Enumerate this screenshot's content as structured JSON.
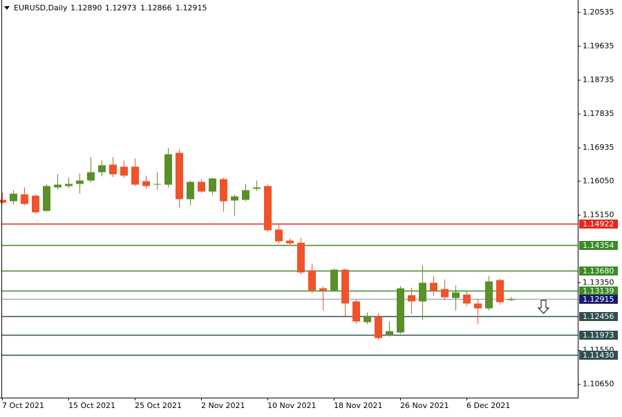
{
  "chart_data": {
    "type": "candlestick",
    "header": {
      "symbol": "EURUSD,Daily",
      "ohlc_labels": [
        "1.12890",
        "1.12973",
        "1.12866",
        "1.12915"
      ]
    },
    "categories": [
      "7 Oct 2021",
      null,
      null,
      null,
      null,
      null,
      "15 Oct 2021",
      null,
      null,
      null,
      null,
      null,
      "25 Oct 2021",
      null,
      null,
      null,
      null,
      null,
      "2 Nov 2021",
      null,
      null,
      null,
      null,
      null,
      "10 Nov 2021",
      null,
      null,
      null,
      null,
      null,
      "18 Nov 2021",
      null,
      null,
      null,
      null,
      null,
      "26 Nov 2021",
      null,
      null,
      null,
      null,
      null,
      "6 Dec 2021",
      null,
      null,
      null,
      null
    ],
    "open": [
      1.15554,
      1.15517,
      1.15701,
      1.15664,
      1.1526,
      1.15885,
      1.15921,
      1.15977,
      1.16068,
      1.16289,
      1.16491,
      1.16436,
      1.16436,
      1.1605,
      1.15958,
      1.15958,
      1.16803,
      1.15572,
      1.16032,
      1.15774,
      1.16105,
      1.15536,
      1.15554,
      1.15848,
      1.15921,
      1.14764,
      1.1447,
      1.14415,
      1.1368,
      1.13203,
      1.13148,
      1.13699,
      1.12854,
      1.12303,
      1.12449,
      1.11953,
      1.12027,
      1.13019,
      1.12854,
      1.1335,
      1.13184,
      1.12946,
      1.13037,
      1.12799,
      1.1267,
      1.13423,
      1.1289
    ],
    "high": [
      1.15738,
      1.15811,
      1.15885,
      1.15701,
      1.15977,
      1.16234,
      1.16142,
      1.16252,
      1.16693,
      1.16601,
      1.16693,
      1.16601,
      1.16656,
      1.16197,
      1.16289,
      1.16932,
      1.16895,
      1.16068,
      1.16105,
      1.16142,
      1.16142,
      1.15701,
      1.15977,
      1.16068,
      1.15958,
      1.14911,
      1.14525,
      1.14544,
      1.13864,
      1.13258,
      1.13735,
      1.13735,
      1.12909,
      1.1256,
      1.12541,
      1.12321,
      1.13258,
      1.13221,
      1.13827,
      1.13533,
      1.13441,
      1.13276,
      1.13129,
      1.12909,
      1.13533,
      1.1346,
      1.12973
    ],
    "low": [
      1.15444,
      1.15425,
      1.15407,
      1.15187,
      1.15242,
      1.15829,
      1.15866,
      1.15719,
      1.16013,
      1.16179,
      1.1616,
      1.16142,
      1.15921,
      1.15848,
      1.15829,
      1.15885,
      1.15352,
      1.15407,
      1.15738,
      1.15682,
      1.15242,
      1.15131,
      1.15517,
      1.15793,
      1.14709,
      1.14397,
      1.14342,
      1.1357,
      1.13074,
      1.12615,
      1.13111,
      1.12468,
      1.12266,
      1.12247,
      1.11825,
      1.11917,
      1.1199,
      1.12523,
      1.12358,
      1.13,
      1.1289,
      1.12615,
      1.12725,
      1.12247,
      1.12615,
      1.12762,
      1.12866
    ],
    "close": [
      1.1548,
      1.15719,
      1.15444,
      1.15223,
      1.15921,
      1.15958,
      1.15977,
      1.16068,
      1.16289,
      1.16473,
      1.16234,
      1.16197,
      1.15958,
      1.15921,
      1.15977,
      1.16766,
      1.15572,
      1.16032,
      1.15774,
      1.16123,
      1.15517,
      1.15646,
      1.15811,
      1.15885,
      1.14746,
      1.14452,
      1.14397,
      1.13625,
      1.13148,
      1.13148,
      1.13699,
      1.12799,
      1.12321,
      1.12468,
      1.1188,
      1.12064,
      1.13203,
      1.12854,
      1.1335,
      1.13129,
      1.12964,
      1.13092,
      1.12799,
      1.1267,
      1.13386,
      1.12835,
      1.12915
    ],
    "up_color": "#5a8f29",
    "down_color": "#f0522a",
    "ylim": [
      1.10296,
      1.20866
    ],
    "yticks": [
      1.20535,
      1.19635,
      1.18735,
      1.17835,
      1.16935,
      {
        "value": 1.1605,
        "label": "1.16050"
      },
      {
        "value": 1.1515,
        "label": "1.15150"
      },
      {
        "value": 1.1335,
        "label": "1.13350"
      },
      {
        "value": 1.1155,
        "label": "1.11550"
      },
      {
        "value": 1.1065,
        "label": "1.10650"
      }
    ],
    "levels": [
      {
        "value": 1.14922,
        "label": "1.14922",
        "color": "#e8241b"
      },
      {
        "value": 1.14354,
        "label": "1.14354",
        "color": "#3a8a25"
      },
      {
        "value": 1.1368,
        "label": "1.13680",
        "color": "#3a8a25"
      },
      {
        "value": 1.13139,
        "label": "1.13139",
        "color": "#3a8a25"
      },
      {
        "value": 1.12915,
        "label": "1.12915",
        "color": "#191970",
        "line_color": "#a9a9a9"
      },
      {
        "value": 1.12456,
        "label": "1.12456",
        "color": "#2f4f4f"
      },
      {
        "value": 1.11973,
        "label": "1.11973",
        "color": "#2f4f4f"
      },
      {
        "value": 1.1143,
        "label": "1.11430",
        "color": "#2f4f4f"
      }
    ]
  }
}
